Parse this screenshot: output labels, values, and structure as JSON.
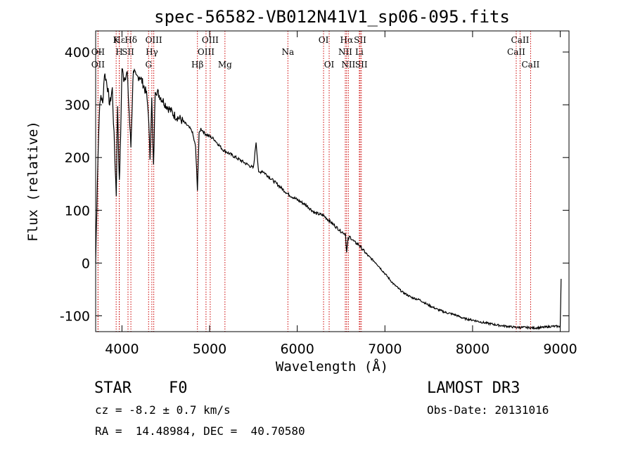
{
  "chart_data": {
    "type": "line",
    "title": "spec-56582-VB012N41V1_sp06-095.fits",
    "xlabel": "Wavelength (Å)",
    "ylabel": "Flux (relative)",
    "xlim": [
      3700,
      9100
    ],
    "ylim": [
      -130,
      440
    ],
    "xticks": [
      4000,
      5000,
      6000,
      7000,
      8000,
      9000
    ],
    "yticks": [
      -100,
      0,
      100,
      200,
      300,
      400
    ],
    "grid": false,
    "series": [
      {
        "name": "spectrum",
        "x": [
          3700,
          3720,
          3740,
          3760,
          3780,
          3800,
          3830,
          3860,
          3890,
          3910,
          3935,
          3950,
          3970,
          3985,
          4000,
          4020,
          4060,
          4102,
          4130,
          4160,
          4200,
          4240,
          4280,
          4300,
          4320,
          4340,
          4360,
          4380,
          4420,
          4460,
          4500,
          4550,
          4600,
          4650,
          4700,
          4750,
          4800,
          4840,
          4861,
          4880,
          4900,
          4950,
          5000,
          5050,
          5100,
          5150,
          5200,
          5300,
          5400,
          5500,
          5530,
          5560,
          5600,
          5700,
          5800,
          5900,
          6000,
          6100,
          6200,
          6300,
          6400,
          6500,
          6550,
          6563,
          6580,
          6600,
          6650,
          6700,
          6800,
          6900,
          7000,
          7100,
          7200,
          7300,
          7400,
          7500,
          7600,
          7700,
          7800,
          7900,
          8000,
          8100,
          8200,
          8300,
          8400,
          8500,
          8600,
          8700,
          8800,
          8900,
          9000,
          9010
        ],
        "values": [
          0,
          160,
          280,
          320,
          300,
          360,
          340,
          300,
          330,
          240,
          130,
          300,
          150,
          240,
          370,
          350,
          360,
          220,
          370,
          350,
          355,
          340,
          320,
          290,
          200,
          310,
          180,
          330,
          320,
          310,
          300,
          290,
          280,
          275,
          268,
          260,
          250,
          220,
          140,
          245,
          255,
          245,
          240,
          235,
          225,
          215,
          210,
          200,
          190,
          180,
          230,
          170,
          175,
          160,
          145,
          130,
          120,
          110,
          95,
          90,
          75,
          60,
          55,
          20,
          45,
          50,
          40,
          35,
          15,
          0,
          -20,
          -40,
          -55,
          -65,
          -70,
          -80,
          -88,
          -94,
          -98,
          -105,
          -108,
          -112,
          -115,
          -118,
          -120,
          -122,
          -122,
          -123,
          -122,
          -120,
          -120,
          -30
        ]
      }
    ],
    "lines": [
      {
        "label": "Hε",
        "x": 3970,
        "row": 1
      },
      {
        "label": "K",
        "x": 3934,
        "row": 1
      },
      {
        "label": "Hδ",
        "x": 4102,
        "row": 1
      },
      {
        "label": "OIII",
        "x": 4363,
        "row": 1
      },
      {
        "label": "OIII",
        "x": 5007,
        "row": 1
      },
      {
        "label": "OI",
        "x": 6300,
        "row": 1
      },
      {
        "label": "Hα",
        "x": 6563,
        "row": 1
      },
      {
        "label": "SII",
        "x": 6717,
        "row": 1
      },
      {
        "label": "CaII",
        "x": 8542,
        "row": 1
      },
      {
        "label": "OII",
        "x": 3727,
        "row": 2
      },
      {
        "label": "H",
        "x": 3969,
        "row": 2
      },
      {
        "label": "SII",
        "x": 4069,
        "row": 2
      },
      {
        "label": "Hγ",
        "x": 4341,
        "row": 2
      },
      {
        "label": "OIII",
        "x": 4959,
        "row": 2
      },
      {
        "label": "Na",
        "x": 5893,
        "row": 2
      },
      {
        "label": "NII",
        "x": 6548,
        "row": 2
      },
      {
        "label": "Li",
        "x": 6708,
        "row": 2
      },
      {
        "label": "CaII",
        "x": 8498,
        "row": 2
      },
      {
        "label": "OII",
        "x": 3727,
        "row": 3
      },
      {
        "label": "G",
        "x": 4304,
        "row": 3
      },
      {
        "label": "Hβ",
        "x": 4861,
        "row": 3
      },
      {
        "label": "Mg",
        "x": 5175,
        "row": 3
      },
      {
        "label": "OI",
        "x": 6364,
        "row": 3
      },
      {
        "label": "NII",
        "x": 6583,
        "row": 3
      },
      {
        "label": "SII",
        "x": 6731,
        "row": 3
      },
      {
        "label": "CaII",
        "x": 8662,
        "row": 3
      }
    ]
  },
  "info": {
    "object": "STAR    F0",
    "survey": "LAMOST DR3",
    "cz": "cz = -8.2 ± 0.7 km/s",
    "obs_date": "Obs-Date: 20131016",
    "coords": "RA =  14.48984, DEC =  40.70580"
  },
  "colors": {
    "line": "#000000",
    "marker": "#cc0000"
  }
}
